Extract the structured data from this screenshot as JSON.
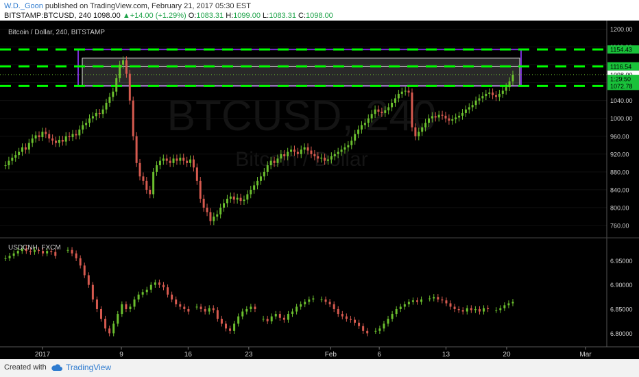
{
  "header": {
    "author": "W.D._Goon",
    "published_text": "published on TradingView.com, February 21, 2017 05:30 EST",
    "symbol": "BITSTAMP:BTCUSD, 240",
    "last": "1098.00",
    "change": "+14.00 (+1.29%)",
    "o_label": "O:",
    "o": "1083.31",
    "h_label": "H:",
    "h": "1099.00",
    "l_label": "L:",
    "l": "1083.31",
    "c_label": "C:",
    "c": "1098.00"
  },
  "footer": {
    "created_with": "Created with",
    "brand": "TradingView"
  },
  "colors": {
    "bg": "#000000",
    "up": "#6bbf2e",
    "down": "#d65a4f",
    "guide": "#00ff00",
    "box": "#7a2fd6",
    "zone": "#ffffff"
  },
  "chart_data": [
    {
      "type": "candlestick",
      "title": "Bitcoin / Dollar, 240, BITSTAMP",
      "watermark_symbol": "BTCUSD, 240",
      "watermark_name": "Bitcoin / Dollar",
      "ylim": [
        740,
        1210
      ],
      "yticks": [
        "1200.00",
        "1160.00",
        "1120.00",
        "1080.00",
        "1040.00",
        "1000.00",
        "960.00",
        "920.00",
        "880.00",
        "840.00",
        "800.00",
        "760.00"
      ],
      "ytick_values": [
        1200,
        1160,
        1120,
        1080,
        1040,
        1000,
        960,
        920,
        880,
        840,
        800,
        760
      ],
      "price_labels": [
        {
          "text": "1154.43",
          "value": 1154.43,
          "kind": "green"
        },
        {
          "text": "1116.54",
          "value": 1116.54,
          "kind": "green"
        },
        {
          "text": "1098.00",
          "value": 1098.0,
          "kind": "white"
        },
        {
          "text": "1:29:50",
          "value": 1088.5,
          "kind": "green"
        },
        {
          "text": "1072.78",
          "value": 1072.78,
          "kind": "green"
        }
      ],
      "horizontal_levels": [
        1154.43,
        1116.54,
        1072.78
      ],
      "zones": [
        {
          "from": 1072.78,
          "to": 1154.43,
          "style": "purple-box"
        },
        {
          "from": 1116.54,
          "to": 1135,
          "style": "white-box"
        },
        {
          "from": 1072.78,
          "to": 1116.54,
          "style": "white-box"
        }
      ],
      "series": [
        {
          "values": [
            895,
            905,
            912,
            918,
            925,
            935,
            930,
            945,
            955,
            962,
            958,
            970,
            965,
            955,
            950,
            945,
            952,
            948,
            960,
            958,
            965,
            962,
            975,
            985,
            990,
            1000,
            1005,
            1012,
            1010,
            1020,
            1035,
            1048,
            1060,
            1090,
            1120,
            1130,
            1100,
            1040,
            960,
            900,
            870,
            860,
            840,
            830,
            880,
            895,
            905,
            910,
            905,
            900,
            910,
            905,
            912,
            905,
            900,
            908,
            890,
            860,
            820,
            800,
            790,
            770,
            780,
            785,
            800,
            810,
            820,
            825,
            818,
            822,
            815,
            818,
            830,
            840,
            850,
            860,
            870,
            880,
            895,
            905,
            900,
            910,
            920,
            915,
            925,
            930,
            925,
            920,
            930,
            935,
            928,
            920,
            915,
            910,
            912,
            905,
            908,
            915,
            920,
            925,
            930,
            935,
            940,
            950,
            965,
            975,
            985,
            990,
            1000,
            1010,
            1020,
            1015,
            1012,
            1018,
            1025,
            1035,
            1045,
            1055,
            1060,
            1062,
            1058,
            980,
            960,
            970,
            980,
            990,
            1000,
            1005,
            1002,
            1008,
            1006,
            1000,
            995,
            998,
            1002,
            1006,
            1012,
            1020,
            1025,
            1030,
            1040,
            1045,
            1050,
            1055,
            1058,
            1052,
            1048,
            1055,
            1062,
            1070,
            1083,
            1098
          ]
        }
      ]
    },
    {
      "type": "candlestick",
      "title": "USDCNH, FXCM",
      "ylim": [
        6.775,
        6.99
      ],
      "yticks": [
        "6.95000",
        "6.90000",
        "6.85000",
        "6.80000"
      ],
      "ytick_values": [
        6.95,
        6.9,
        6.85,
        6.8
      ],
      "series": [
        {
          "values": [
            6.955,
            6.96,
            6.965,
            6.97,
            6.975,
            6.97,
            6.968,
            6.972,
            6.97,
            6.965,
            6.97,
            6.968,
            6.96,
            null,
            null,
            6.972,
            6.965,
            6.955,
            6.94,
            6.92,
            6.9,
            6.87,
            6.85,
            6.83,
            6.81,
            6.8,
            6.82,
            6.84,
            6.86,
            6.85,
            6.855,
            6.87,
            6.88,
            6.885,
            6.89,
            6.9,
            6.905,
            6.9,
            6.895,
            6.88,
            6.87,
            6.86,
            6.855,
            6.85,
            6.845,
            null,
            6.855,
            6.85,
            6.845,
            6.852,
            6.848,
            6.83,
            6.82,
            6.81,
            6.805,
            6.82,
            6.835,
            6.845,
            6.85,
            6.855,
            6.85,
            null,
            6.83,
            6.825,
            6.835,
            6.84,
            6.832,
            6.828,
            6.84,
            6.845,
            6.855,
            6.86,
            6.865,
            6.87,
            6.872,
            null,
            6.87,
            6.865,
            6.86,
            6.85,
            6.84,
            6.835,
            6.83,
            6.828,
            6.822,
            6.815,
            6.805,
            6.8,
            null,
            6.805,
            6.81,
            6.82,
            6.83,
            6.84,
            6.85,
            6.855,
            6.86,
            6.865,
            6.868,
            6.865,
            6.87,
            null,
            6.872,
            6.875,
            6.87,
            6.868,
            6.862,
            6.855,
            6.85,
            6.848,
            6.845,
            6.852,
            6.848,
            6.85,
            6.845,
            6.852,
            6.85,
            null,
            6.848,
            6.852,
            6.858,
            6.862,
            6.865
          ]
        }
      ]
    }
  ],
  "xaxis": {
    "labels": [
      "2017",
      "9",
      "16",
      "23",
      "Feb",
      "6",
      "13",
      "20",
      "Mar"
    ],
    "positions_frac": [
      0.07,
      0.2,
      0.31,
      0.41,
      0.545,
      0.625,
      0.735,
      0.835,
      0.965
    ]
  }
}
